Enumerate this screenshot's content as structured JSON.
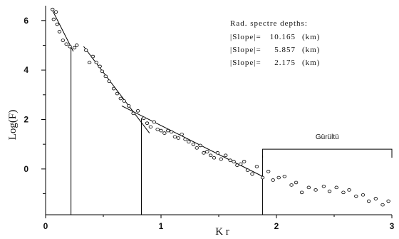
{
  "chart_data": {
    "type": "scatter",
    "xlabel": "K r",
    "ylabel": "Log(F)",
    "xlim": [
      0,
      3
    ],
    "ylim": [
      -1.85,
      6.6
    ],
    "x_ticks": [
      "0",
      "1",
      "2",
      "3"
    ],
    "y_ticks": [
      "0",
      "2",
      "4",
      "6"
    ],
    "x_tick_values": [
      0,
      1,
      2,
      3
    ],
    "y_tick_values": [
      0,
      2,
      4,
      6
    ],
    "y_minor_ticks": [
      -1,
      1,
      3,
      5
    ],
    "grid": false,
    "legend_placement": "top-right",
    "legend_title": "Rad. spectre depths:",
    "slope_rows": [
      {
        "label": "|Slope|=",
        "value": "10.165",
        "unit": "(km)"
      },
      {
        "label": "|Slope|=",
        "value": "5.857",
        "unit": "(km)"
      },
      {
        "label": "|Slope|=",
        "value": "2.175",
        "unit": "(km)"
      }
    ],
    "noise_annotation": {
      "label": "Gürültü",
      "x_start": 1.88,
      "x_end": 3.0,
      "y": 0.8
    },
    "points": [
      [
        0.06,
        6.45
      ],
      [
        0.09,
        6.35
      ],
      [
        0.07,
        6.05
      ],
      [
        0.1,
        5.85
      ],
      [
        0.12,
        5.55
      ],
      [
        0.15,
        5.2
      ],
      [
        0.18,
        5.05
      ],
      [
        0.21,
        4.95
      ],
      [
        0.25,
        4.9
      ],
      [
        0.27,
        5.0
      ],
      [
        0.35,
        4.8
      ],
      [
        0.38,
        4.3
      ],
      [
        0.41,
        4.55
      ],
      [
        0.44,
        4.3
      ],
      [
        0.47,
        4.15
      ],
      [
        0.49,
        3.95
      ],
      [
        0.52,
        3.75
      ],
      [
        0.55,
        3.55
      ],
      [
        0.59,
        3.25
      ],
      [
        0.62,
        3.05
      ],
      [
        0.65,
        2.85
      ],
      [
        0.68,
        2.75
      ],
      [
        0.72,
        2.55
      ],
      [
        0.76,
        2.25
      ],
      [
        0.8,
        2.35
      ],
      [
        0.85,
        2.05
      ],
      [
        0.88,
        1.85
      ],
      [
        0.91,
        1.7
      ],
      [
        0.94,
        1.9
      ],
      [
        0.97,
        1.6
      ],
      [
        1.0,
        1.55
      ],
      [
        1.03,
        1.45
      ],
      [
        1.06,
        1.55
      ],
      [
        1.09,
        1.5
      ],
      [
        1.12,
        1.3
      ],
      [
        1.15,
        1.25
      ],
      [
        1.18,
        1.4
      ],
      [
        1.21,
        1.2
      ],
      [
        1.24,
        1.1
      ],
      [
        1.28,
        1.0
      ],
      [
        1.31,
        0.85
      ],
      [
        1.34,
        0.95
      ],
      [
        1.37,
        0.65
      ],
      [
        1.4,
        0.7
      ],
      [
        1.43,
        0.55
      ],
      [
        1.46,
        0.45
      ],
      [
        1.49,
        0.65
      ],
      [
        1.52,
        0.4
      ],
      [
        1.56,
        0.55
      ],
      [
        1.6,
        0.35
      ],
      [
        1.63,
        0.3
      ],
      [
        1.66,
        0.15
      ],
      [
        1.69,
        0.2
      ],
      [
        1.72,
        0.3
      ],
      [
        1.75,
        -0.05
      ],
      [
        1.79,
        -0.2
      ],
      [
        1.83,
        0.1
      ],
      [
        1.88,
        -0.35
      ],
      [
        1.93,
        -0.1
      ],
      [
        1.97,
        -0.45
      ],
      [
        2.02,
        -0.35
      ],
      [
        2.07,
        -0.3
      ],
      [
        2.13,
        -0.65
      ],
      [
        2.17,
        -0.55
      ],
      [
        2.22,
        -0.95
      ],
      [
        2.28,
        -0.75
      ],
      [
        2.34,
        -0.85
      ],
      [
        2.41,
        -0.7
      ],
      [
        2.46,
        -0.9
      ],
      [
        2.52,
        -0.75
      ],
      [
        2.58,
        -0.95
      ],
      [
        2.63,
        -0.85
      ],
      [
        2.69,
        -1.1
      ],
      [
        2.75,
        -1.05
      ],
      [
        2.8,
        -1.3
      ],
      [
        2.86,
        -1.2
      ],
      [
        2.92,
        -1.45
      ],
      [
        2.97,
        -1.3
      ]
    ],
    "fit_lines": [
      {
        "x": [
          0.05,
          0.24
        ],
        "y": [
          6.5,
          4.75
        ]
      },
      {
        "x": [
          0.33,
          0.9
        ],
        "y": [
          4.95,
          1.45
        ]
      },
      {
        "x": [
          0.66,
          1.88
        ],
        "y": [
          2.55,
          -0.3
        ]
      }
    ],
    "vertical_markers": [
      {
        "x": 0.22,
        "y_top": 4.95
      },
      {
        "x": 0.83,
        "y_top": 2.05
      },
      {
        "x": 1.88,
        "y_top": 0.55
      }
    ]
  }
}
